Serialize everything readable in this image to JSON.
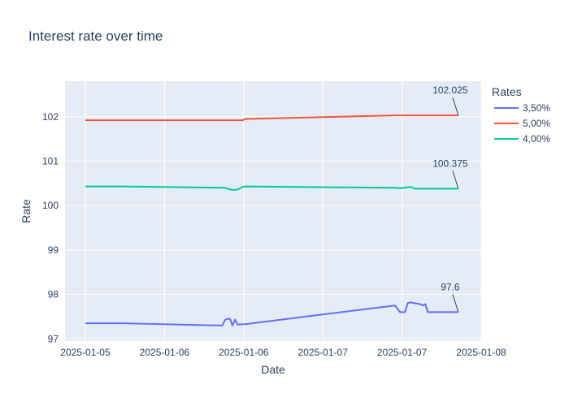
{
  "chart_data": {
    "type": "line",
    "title": "Interest rate over time",
    "xlabel": "Date",
    "ylabel": "Rate",
    "x_range_hours": [
      -4,
      78
    ],
    "ylim": [
      96.95,
      102.8
    ],
    "x_ticks": [
      "2025-01-05",
      "2025-01-06",
      "2025-01-06",
      "2025-01-07",
      "2025-01-07",
      "2025-01-08"
    ],
    "y_ticks": [
      97,
      98,
      99,
      100,
      101,
      102
    ],
    "legend": {
      "title": "Rates",
      "position": "right"
    },
    "grid": true,
    "series": [
      {
        "name": "3,50%",
        "color": "#636efa",
        "points": [
          [
            0,
            97.35
          ],
          [
            7.5,
            97.35
          ],
          [
            27,
            97.3
          ],
          [
            27.5,
            97.42
          ],
          [
            28,
            97.45
          ],
          [
            28.5,
            97.45
          ],
          [
            29,
            97.3
          ],
          [
            29.5,
            97.43
          ],
          [
            30,
            97.32
          ],
          [
            31,
            97.33
          ],
          [
            31.5,
            97.33
          ],
          [
            61,
            97.75
          ],
          [
            62,
            97.6
          ],
          [
            63,
            97.6
          ],
          [
            63.5,
            97.8
          ],
          [
            64,
            97.82
          ],
          [
            65,
            97.8
          ],
          [
            66,
            97.78
          ],
          [
            66.5,
            97.75
          ],
          [
            67,
            97.78
          ],
          [
            67.5,
            97.6
          ],
          [
            73.5,
            97.6
          ]
        ]
      },
      {
        "name": "5,00%",
        "color": "#ef553b",
        "points": [
          [
            0,
            101.92
          ],
          [
            31,
            101.92
          ],
          [
            31.5,
            101.95
          ],
          [
            61,
            102.03
          ],
          [
            73.5,
            102.03
          ]
        ]
      },
      {
        "name": "4,00%",
        "color": "#00cc96",
        "points": [
          [
            0,
            100.43
          ],
          [
            7.5,
            100.43
          ],
          [
            27.5,
            100.4
          ],
          [
            28,
            100.38
          ],
          [
            29,
            100.35
          ],
          [
            30,
            100.36
          ],
          [
            31,
            100.42
          ],
          [
            31.5,
            100.43
          ],
          [
            61,
            100.4
          ],
          [
            62,
            100.39
          ],
          [
            64,
            100.42
          ],
          [
            65,
            100.38
          ],
          [
            73.5,
            100.38
          ]
        ]
      }
    ],
    "annotations": [
      {
        "text": "102.025",
        "x": 73.5,
        "y": 102.03
      },
      {
        "text": "100.375",
        "x": 73.5,
        "y": 100.38
      },
      {
        "text": "97.6",
        "x": 73.5,
        "y": 97.6
      }
    ]
  }
}
